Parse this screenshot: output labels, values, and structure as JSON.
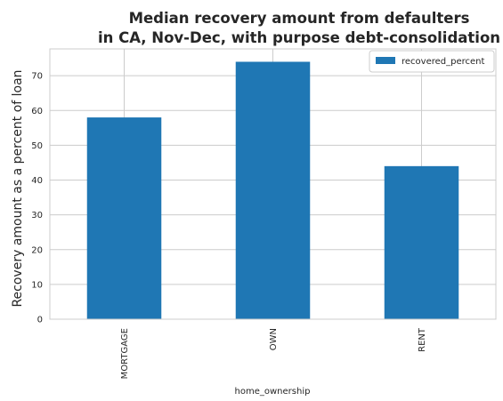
{
  "chart_data": {
    "type": "bar",
    "title_lines": [
      "Median recovery amount from defaulters",
      "in CA, Nov-Dec, with purpose debt-consolidation"
    ],
    "xlabel": "home_ownership",
    "ylabel": "Recovery amount as a percent of loan",
    "categories": [
      "MORTGAGE",
      "OWN",
      "RENT"
    ],
    "series": [
      {
        "name": "recovered_percent",
        "values": [
          58,
          74,
          44
        ],
        "color": "#1f77b4"
      }
    ],
    "ylim": [
      0,
      77.7
    ],
    "yticks": [
      0,
      10,
      20,
      30,
      40,
      50,
      60,
      70
    ],
    "grid": true,
    "legend": "top-right",
    "style": {
      "background": "#ffffff",
      "grid_color": "#cccccc",
      "frame_color": "#cccccc"
    }
  }
}
